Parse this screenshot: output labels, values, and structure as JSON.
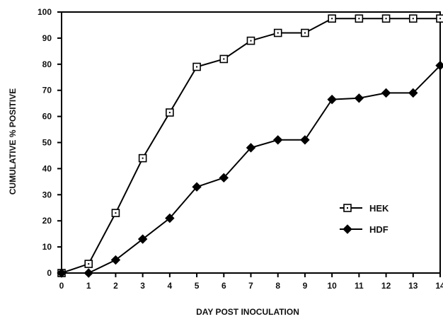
{
  "chart_data": {
    "type": "line",
    "title": "",
    "xlabel": "DAY POST INOCULATION",
    "ylabel": "CUMULATIVE % POSITIVE",
    "xlim": [
      0,
      14
    ],
    "ylim": [
      0,
      100
    ],
    "x_ticks": [
      0,
      1,
      2,
      3,
      4,
      5,
      6,
      7,
      8,
      9,
      10,
      11,
      12,
      13,
      14
    ],
    "y_ticks": [
      0,
      10,
      20,
      30,
      40,
      50,
      60,
      70,
      80,
      90,
      100
    ],
    "grid": false,
    "legend_position": "lower-right",
    "series": [
      {
        "name": "HEK",
        "marker": "open-square",
        "color": "#000000",
        "x": [
          0,
          1,
          2,
          3,
          4,
          5,
          6,
          7,
          8,
          9,
          10,
          11,
          12,
          13,
          14
        ],
        "y": [
          0,
          3.5,
          23,
          44,
          61.5,
          79,
          82,
          89,
          92,
          92,
          97.5,
          97.5,
          97.5,
          97.5,
          97.5
        ]
      },
      {
        "name": "HDF",
        "marker": "filled-diamond",
        "color": "#000000",
        "x": [
          0,
          1,
          2,
          3,
          4,
          5,
          6,
          7,
          8,
          9,
          10,
          11,
          12,
          13,
          14
        ],
        "y": [
          0,
          0,
          5,
          13,
          21,
          33,
          36.5,
          48,
          51,
          51,
          66.5,
          67,
          69,
          69,
          79.5
        ]
      }
    ]
  }
}
